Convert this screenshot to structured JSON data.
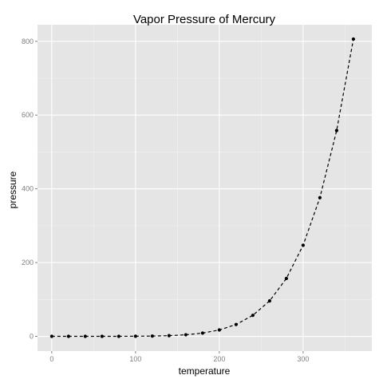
{
  "chart_data": {
    "type": "line",
    "title": "Vapor Pressure of Mercury",
    "xlabel": "temperature",
    "ylabel": "pressure",
    "xlim": [
      -17,
      382
    ],
    "ylim": [
      -40,
      845
    ],
    "xticks": [
      0,
      100,
      200,
      300
    ],
    "yticks": [
      0,
      200,
      400,
      600,
      800
    ],
    "grid": true,
    "line_style": "dashed",
    "marker": "point",
    "colors": {
      "panel": "#e5e5e5",
      "grid_major": "#ffffff",
      "grid_minor": "#f2f2f2",
      "line": "#000000",
      "tick_label": "#7f7f7f"
    },
    "series": [
      {
        "x": [
          0,
          20,
          40,
          60,
          80,
          100,
          120,
          140,
          160,
          180,
          200,
          220,
          240,
          260,
          280,
          300,
          320,
          340,
          360
        ],
        "y": [
          0.0002,
          0.0012,
          0.006,
          0.03,
          0.09,
          0.27,
          0.75,
          1.85,
          4.2,
          8.8,
          17.3,
          32.1,
          57.0,
          96.0,
          157.0,
          247.0,
          376.0,
          558.0,
          806.0
        ]
      }
    ]
  }
}
